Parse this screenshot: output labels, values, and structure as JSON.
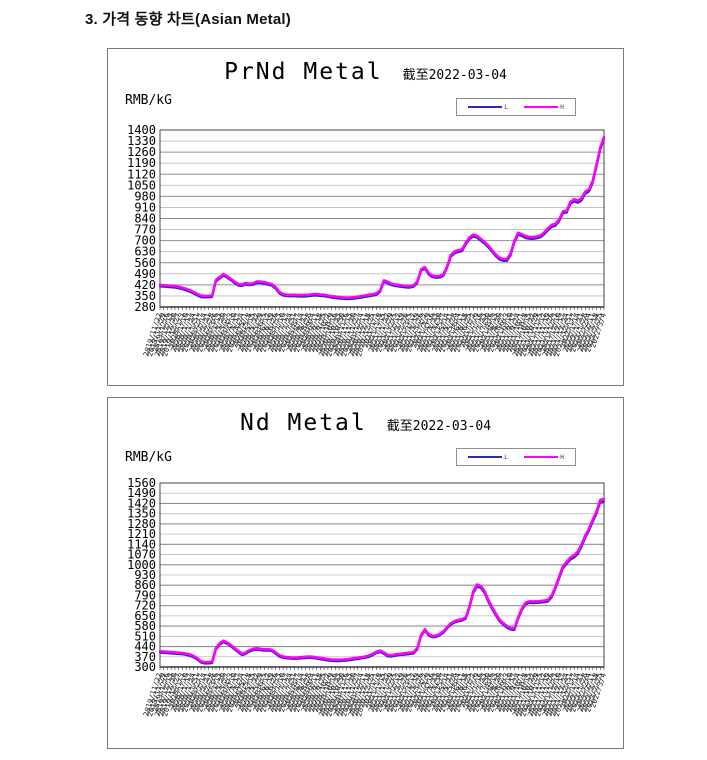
{
  "page": {
    "heading": "3. 가격 동향 차트(Asian Metal)"
  },
  "chart_data": [
    {
      "type": "line",
      "title": "PrNd Metal",
      "subtitle": "截至2022-03-04",
      "ylabel": "RMB/kG",
      "ylim": [
        280,
        1400
      ],
      "ytick_step": 70,
      "yticks": [
        1400,
        1330,
        1260,
        1190,
        1120,
        1050,
        980,
        910,
        840,
        770,
        700,
        630,
        560,
        490,
        420,
        350,
        280
      ],
      "grid": true,
      "legend_position": "top-right",
      "x": [
        "2019/11/22",
        "2019/11/29",
        "2019/12/6",
        "2019/12/13",
        "2019/12/20",
        "2019/12/27",
        "2020/1/3",
        "2020/1/10",
        "2020/1/17",
        "2020/1/24",
        "2020/1/31",
        "2020/2/7",
        "2020/2/14",
        "2020/2/21",
        "2020/2/28",
        "2020/3/6",
        "2020/3/13",
        "2020/3/20",
        "2020/3/27",
        "2020/4/3",
        "2020/4/10",
        "2020/4/17",
        "2020/4/24",
        "2020/5/1",
        "2020/5/8",
        "2020/5/15",
        "2020/5/22",
        "2020/5/29",
        "2020/6/5",
        "2020/6/12",
        "2020/6/19",
        "2020/6/26",
        "2020/7/3",
        "2020/7/10",
        "2020/7/17",
        "2020/7/24",
        "2020/7/31",
        "2020/8/7",
        "2020/8/14",
        "2020/8/21",
        "2020/8/28",
        "2020/9/4",
        "2020/9/11",
        "2020/9/18",
        "2020/9/25",
        "2020/10/2",
        "2020/10/9",
        "2020/10/16",
        "2020/10/23",
        "2020/10/30",
        "2020/11/6",
        "2020/11/13",
        "2020/11/20",
        "2020/11/27",
        "2020/12/4",
        "2020/12/11",
        "2020/12/18",
        "2020/12/25",
        "2021/1/1",
        "2021/1/8",
        "2021/1/15",
        "2021/1/22",
        "2021/1/29",
        "2021/2/5",
        "2021/2/12",
        "2021/2/19",
        "2021/2/26",
        "2021/3/5",
        "2021/3/12",
        "2021/3/19",
        "2021/3/26",
        "2021/4/2",
        "2021/4/9",
        "2021/4/16",
        "2021/4/23",
        "2021/4/30",
        "2021/5/7",
        "2021/5/14",
        "2021/5/21",
        "2021/5/28",
        "2021/6/4",
        "2021/6/11",
        "2021/6/18",
        "2021/6/25",
        "2021/7/2",
        "2021/7/9",
        "2021/7/16",
        "2021/7/23",
        "2021/7/30",
        "2021/8/6",
        "2021/8/13",
        "2021/8/20",
        "2021/8/27",
        "2021/9/3",
        "2021/9/10",
        "2021/9/17",
        "2021/9/24",
        "2021/10/1",
        "2021/10/8",
        "2021/10/15",
        "2021/10/22",
        "2021/10/29",
        "2021/11/5",
        "2021/11/12",
        "2021/11/19",
        "2021/11/26",
        "2021/12/3",
        "2021/12/10",
        "2021/12/17",
        "2021/12/24",
        "2021/12/31",
        "2022/1/7",
        "2022/1/14",
        "2022/1/21",
        "2022/1/28",
        "2022/2/4",
        "2022/2/11",
        "2022/2/18",
        "2022/2/25",
        "2022/3/4"
      ],
      "series": [
        {
          "name": "L",
          "color": "#2b2bb4",
          "values": [
            410,
            408,
            406,
            404,
            402,
            398,
            392,
            385,
            376,
            365,
            352,
            342,
            340,
            341,
            343,
            442,
            460,
            478,
            465,
            448,
            430,
            415,
            412,
            422,
            417,
            420,
            432,
            430,
            426,
            420,
            414,
            395,
            365,
            352,
            348,
            347,
            347,
            346,
            345,
            346,
            348,
            351,
            352,
            349,
            347,
            343,
            339,
            336,
            333,
            331,
            329,
            330,
            332,
            335,
            339,
            343,
            347,
            351,
            356,
            375,
            438,
            430,
            418,
            412,
            409,
            406,
            403,
            402,
            408,
            432,
            510,
            522,
            485,
            468,
            464,
            466,
            478,
            530,
            598,
            620,
            628,
            633,
            676,
            710,
            726,
            718,
            698,
            680,
            656,
            628,
            600,
            580,
            571,
            572,
            608,
            688,
            737,
            728,
            716,
            711,
            710,
            714,
            721,
            740,
            765,
            787,
            793,
            822,
            872,
            877,
            931,
            948,
            939,
            954,
            996,
            1011,
            1065,
            1165,
            1275,
            1340
          ]
        },
        {
          "name": "H",
          "color": "#ff00ff",
          "values": [
            420,
            418,
            416,
            414,
            412,
            408,
            402,
            395,
            386,
            375,
            362,
            352,
            350,
            351,
            353,
            452,
            470,
            488,
            475,
            458,
            440,
            425,
            422,
            432,
            427,
            430,
            442,
            440,
            436,
            430,
            424,
            405,
            375,
            362,
            358,
            357,
            357,
            356,
            355,
            356,
            358,
            361,
            362,
            359,
            357,
            353,
            349,
            346,
            343,
            341,
            339,
            340,
            342,
            345,
            349,
            353,
            357,
            361,
            366,
            385,
            448,
            440,
            428,
            422,
            419,
            416,
            413,
            412,
            418,
            442,
            520,
            532,
            495,
            478,
            474,
            476,
            488,
            540,
            610,
            632,
            640,
            645,
            688,
            722,
            738,
            730,
            710,
            692,
            668,
            640,
            612,
            592,
            583,
            584,
            620,
            700,
            750,
            740,
            728,
            723,
            722,
            726,
            733,
            752,
            778,
            800,
            806,
            835,
            885,
            890,
            945,
            962,
            953,
            968,
            1010,
            1025,
            1080,
            1180,
            1290,
            1355
          ]
        }
      ]
    },
    {
      "type": "line",
      "title": "Nd Metal",
      "subtitle": "截至2022-03-04",
      "ylabel": "RMB/kG",
      "ylim": [
        300,
        1560
      ],
      "ytick_step": 70,
      "yticks": [
        1560,
        1490,
        1420,
        1350,
        1280,
        1210,
        1140,
        1070,
        1000,
        930,
        860,
        790,
        720,
        650,
        580,
        510,
        440,
        370,
        300
      ],
      "grid": true,
      "legend_position": "top-right",
      "x": [
        "2019/11/22",
        "2019/11/29",
        "2019/12/6",
        "2019/12/13",
        "2019/12/20",
        "2019/12/27",
        "2020/1/3",
        "2020/1/10",
        "2020/1/17",
        "2020/1/24",
        "2020/1/31",
        "2020/2/7",
        "2020/2/14",
        "2020/2/21",
        "2020/2/28",
        "2020/3/6",
        "2020/3/13",
        "2020/3/20",
        "2020/3/27",
        "2020/4/3",
        "2020/4/10",
        "2020/4/17",
        "2020/4/24",
        "2020/5/1",
        "2020/5/8",
        "2020/5/15",
        "2020/5/22",
        "2020/5/29",
        "2020/6/5",
        "2020/6/12",
        "2020/6/19",
        "2020/6/26",
        "2020/7/3",
        "2020/7/10",
        "2020/7/17",
        "2020/7/24",
        "2020/7/31",
        "2020/8/7",
        "2020/8/14",
        "2020/8/21",
        "2020/8/28",
        "2020/9/4",
        "2020/9/11",
        "2020/9/18",
        "2020/9/25",
        "2020/10/2",
        "2020/10/9",
        "2020/10/16",
        "2020/10/23",
        "2020/10/30",
        "2020/11/6",
        "2020/11/13",
        "2020/11/20",
        "2020/11/27",
        "2020/12/4",
        "2020/12/11",
        "2020/12/18",
        "2020/12/25",
        "2021/1/1",
        "2021/1/8",
        "2021/1/15",
        "2021/1/22",
        "2021/1/29",
        "2021/2/5",
        "2021/2/12",
        "2021/2/19",
        "2021/2/26",
        "2021/3/5",
        "2021/3/12",
        "2021/3/19",
        "2021/3/26",
        "2021/4/2",
        "2021/4/9",
        "2021/4/16",
        "2021/4/23",
        "2021/4/30",
        "2021/5/7",
        "2021/5/14",
        "2021/5/21",
        "2021/5/28",
        "2021/6/4",
        "2021/6/11",
        "2021/6/18",
        "2021/6/25",
        "2021/7/2",
        "2021/7/9",
        "2021/7/16",
        "2021/7/23",
        "2021/7/30",
        "2021/8/6",
        "2021/8/13",
        "2021/8/20",
        "2021/8/27",
        "2021/9/3",
        "2021/9/10",
        "2021/9/17",
        "2021/9/24",
        "2021/10/1",
        "2021/10/8",
        "2021/10/15",
        "2021/10/22",
        "2021/10/29",
        "2021/11/5",
        "2021/11/12",
        "2021/11/19",
        "2021/11/26",
        "2021/12/3",
        "2021/12/10",
        "2021/12/17",
        "2021/12/24",
        "2021/12/31",
        "2022/1/7",
        "2022/1/14",
        "2022/1/21",
        "2022/1/28",
        "2022/2/4",
        "2022/2/11",
        "2022/2/18",
        "2022/2/25",
        "2022/3/4"
      ],
      "series": [
        {
          "name": "L",
          "color": "#2b2bb4",
          "values": [
            398,
            396,
            394,
            392,
            390,
            388,
            386,
            382,
            376,
            366,
            350,
            330,
            323,
            324,
            326,
            420,
            452,
            470,
            458,
            440,
            420,
            400,
            380,
            390,
            405,
            415,
            418,
            414,
            411,
            412,
            408,
            390,
            370,
            362,
            358,
            356,
            355,
            356,
            358,
            360,
            362,
            360,
            356,
            352,
            348,
            344,
            341,
            340,
            340,
            341,
            343,
            346,
            350,
            354,
            358,
            362,
            368,
            380,
            395,
            402,
            390,
            372,
            370,
            376,
            380,
            382,
            385,
            388,
            392,
            420,
            510,
            548,
            515,
            503,
            505,
            517,
            535,
            565,
            590,
            605,
            612,
            618,
            630,
            708,
            806,
            850,
            840,
            806,
            746,
            696,
            652,
            613,
            588,
            568,
            556,
            553,
            628,
            688,
            728,
            738,
            736,
            738,
            740,
            743,
            748,
            777,
            836,
            905,
            975,
            1005,
            1035,
            1050,
            1074,
            1124,
            1184,
            1234,
            1293,
            1348,
            1428,
            1433
          ]
        },
        {
          "name": "H",
          "color": "#ff00ff",
          "values": [
            408,
            406,
            404,
            402,
            400,
            398,
            396,
            392,
            386,
            376,
            360,
            340,
            333,
            334,
            336,
            430,
            462,
            480,
            468,
            450,
            430,
            410,
            390,
            400,
            415,
            425,
            428,
            424,
            421,
            422,
            418,
            400,
            380,
            372,
            368,
            366,
            365,
            366,
            368,
            370,
            372,
            370,
            366,
            362,
            358,
            354,
            351,
            350,
            350,
            351,
            353,
            356,
            360,
            364,
            368,
            372,
            378,
            390,
            405,
            412,
            400,
            382,
            380,
            386,
            390,
            392,
            395,
            398,
            402,
            430,
            520,
            558,
            525,
            513,
            515,
            527,
            545,
            575,
            600,
            615,
            622,
            628,
            640,
            720,
            820,
            865,
            855,
            820,
            760,
            710,
            665,
            625,
            600,
            580,
            568,
            565,
            640,
            700,
            740,
            750,
            748,
            750,
            752,
            755,
            760,
            790,
            850,
            920,
            990,
            1020,
            1050,
            1065,
            1090,
            1140,
            1200,
            1250,
            1310,
            1365,
            1445,
            1450
          ]
        }
      ]
    }
  ]
}
